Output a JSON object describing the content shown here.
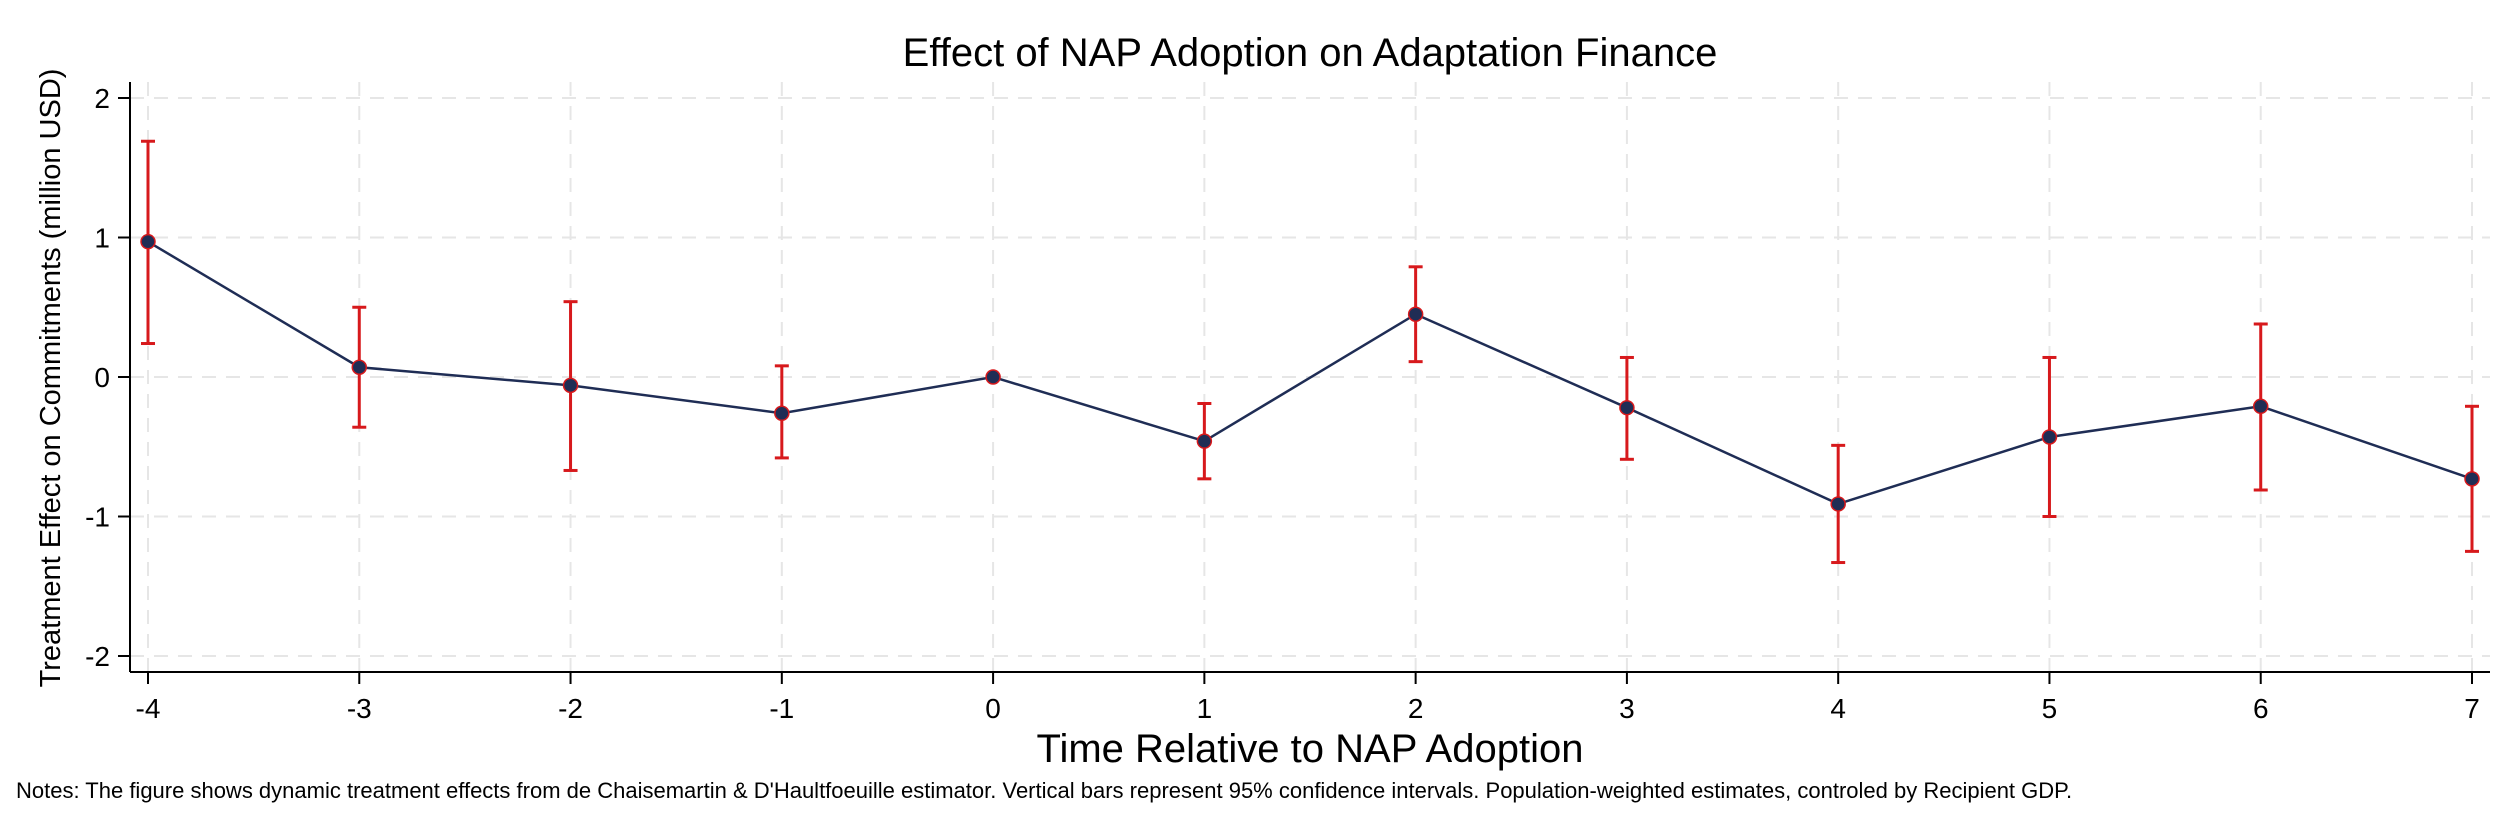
{
  "chart_data": {
    "type": "line",
    "title": "Effect of NAP Adoption on Adaptation Finance",
    "xlabel": "Time Relative to NAP Adoption",
    "ylabel": "Treatment Effect on Commitments (million USD)",
    "x": [
      -4,
      -3,
      -2,
      -1,
      0,
      1,
      2,
      3,
      4,
      5,
      6,
      7
    ],
    "x_tick_labels": [
      "-4",
      "-3",
      "-2",
      "-1",
      "0",
      "1",
      "2",
      "3",
      "4",
      "5",
      "6",
      "7"
    ],
    "y_tick_labels": [
      "2",
      "1",
      "0",
      "-1",
      "-2"
    ],
    "y_ticks": [
      2,
      1,
      0,
      -1,
      -2
    ],
    "ylim": [
      -2.13,
      2.13
    ],
    "series": [
      {
        "values": [
          0.97,
          0.07,
          -0.06,
          -0.26,
          0.0,
          -0.46,
          0.45,
          -0.22,
          -0.91,
          -0.43,
          -0.21,
          -0.73
        ],
        "ci_lower": [
          0.24,
          -0.36,
          -0.67,
          -0.58,
          0.0,
          -0.73,
          0.11,
          -0.59,
          -1.33,
          -1.0,
          -0.81,
          -1.25
        ],
        "ci_upper": [
          1.69,
          0.5,
          0.54,
          0.08,
          0.0,
          -0.19,
          0.79,
          0.14,
          -0.49,
          0.14,
          0.38,
          -0.21
        ]
      }
    ],
    "grid": true,
    "colors": {
      "line": "#1f2d55",
      "marker": "#1f2d55",
      "ci": "#d7191c",
      "grid": "#e6e6e6",
      "axis": "#000000"
    }
  },
  "notes": "Notes: The figure shows dynamic treatment effects from de Chaisemartin & D'Haultfoeuille estimator. Vertical bars represent 95% confidence intervals. Population-weighted estimates, controled by Recipient GDP."
}
